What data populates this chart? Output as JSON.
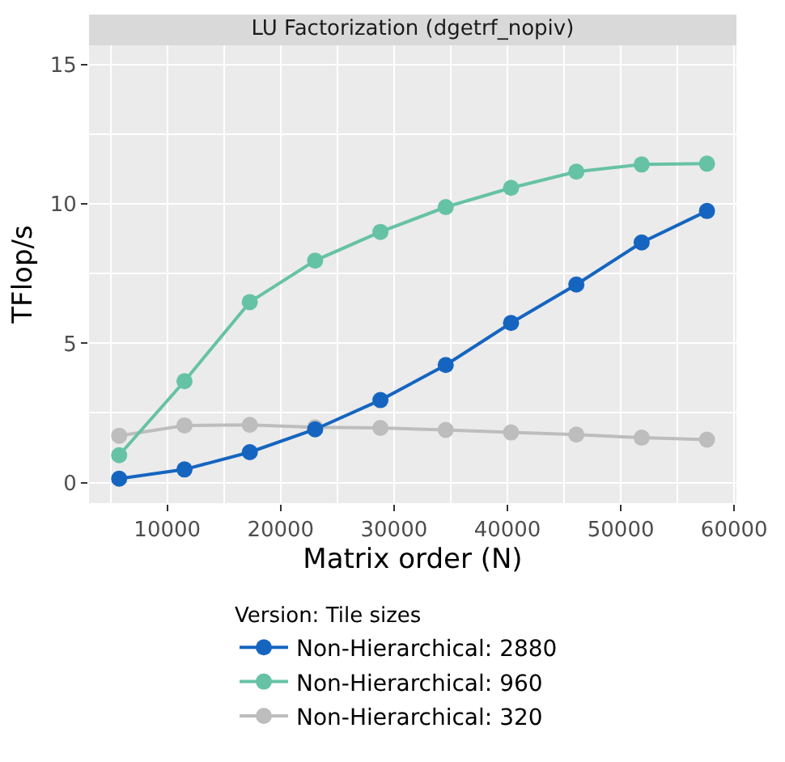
{
  "chart_data": {
    "type": "line",
    "title": "LU Factorization (dgetrf_nopiv)",
    "xlabel": "Matrix order (N)",
    "ylabel": "TFlop/s",
    "legend_title": "Version: Tile sizes",
    "x": [
      5760,
      11520,
      17280,
      23040,
      28800,
      34560,
      40320,
      46080,
      51840,
      57600
    ],
    "series": [
      {
        "name": "Non-Hierarchical: 2880",
        "color": "#1565c0",
        "values": [
          0.14,
          0.47,
          1.09,
          1.91,
          2.96,
          4.22,
          5.73,
          7.11,
          8.62,
          9.75
        ]
      },
      {
        "name": "Non-Hierarchical: 960",
        "color": "#66c2a5",
        "values": [
          0.98,
          3.64,
          6.48,
          7.97,
          9.0,
          9.89,
          10.58,
          11.16,
          11.42,
          11.45
        ]
      },
      {
        "name": "Non-Hierarchical: 320",
        "color": "#bdbdbd",
        "values": [
          1.68,
          2.05,
          2.07,
          1.98,
          1.96,
          1.89,
          1.8,
          1.72,
          1.61,
          1.54
        ]
      }
    ],
    "xlim": [
      3100,
      60200
    ],
    "ylim": [
      -0.74,
      15.7
    ],
    "xticks": [
      10000,
      20000,
      30000,
      40000,
      50000,
      60000
    ],
    "yticks": [
      0,
      5,
      10,
      15
    ],
    "grid": true,
    "legend": "bottom",
    "marker": "circle",
    "line_style": "solid"
  }
}
